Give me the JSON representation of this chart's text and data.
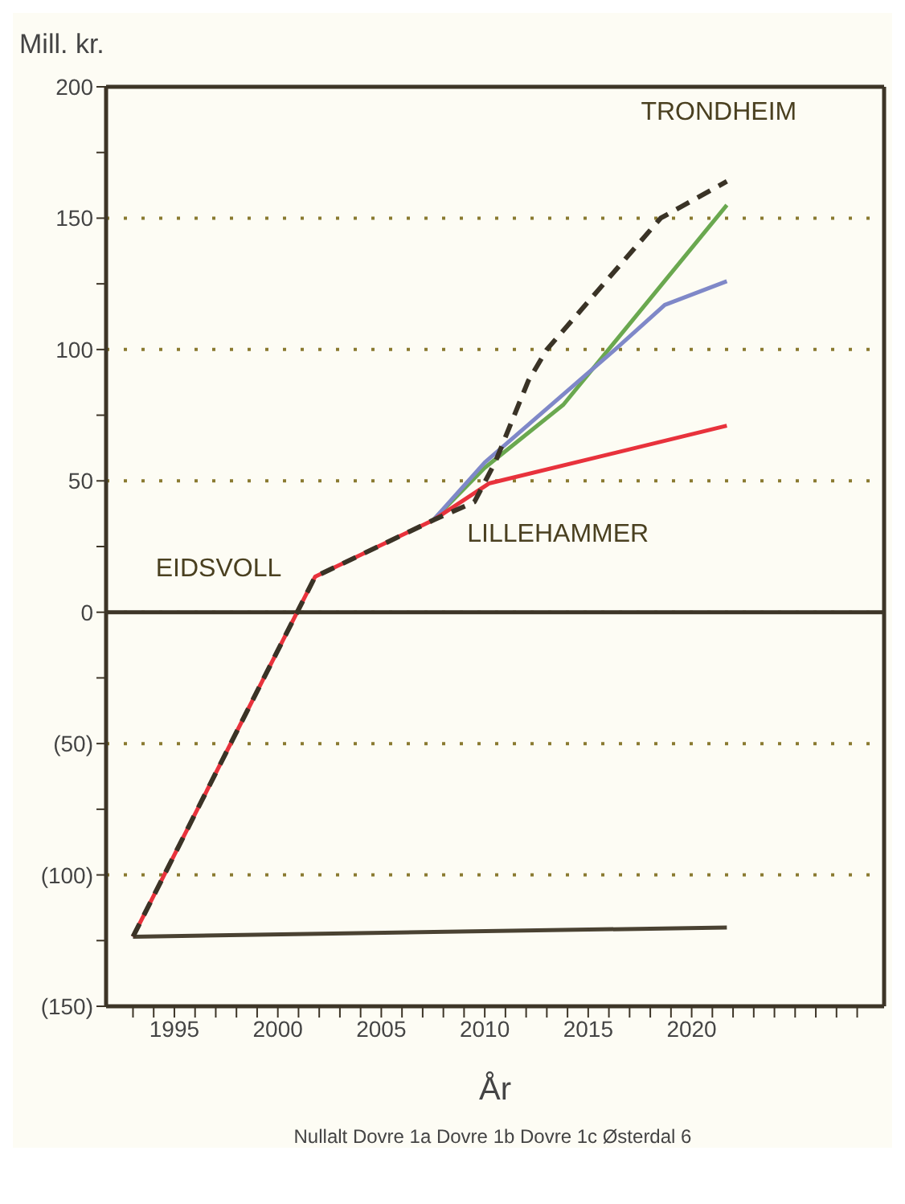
{
  "chart_data": {
    "type": "line",
    "ylabel": "Mill. kr.",
    "xlabel": "År",
    "xlim": [
      1991.7,
      2029.3
    ],
    "xticks": [
      {
        "value": 1993,
        "label": null
      },
      {
        "value": 1994,
        "label": null
      },
      1995,
      {
        "value": 1996,
        "label": null
      },
      {
        "value": 1997,
        "label": null
      },
      {
        "value": 1998,
        "label": null
      },
      {
        "value": 1999,
        "label": null
      },
      2000,
      {
        "value": 2001,
        "label": null
      },
      {
        "value": 2002,
        "label": null
      },
      {
        "value": 2003,
        "label": null
      },
      {
        "value": 2004,
        "label": null
      },
      2005,
      {
        "value": 2006,
        "label": null
      },
      {
        "value": 2007,
        "label": null
      },
      {
        "value": 2008,
        "label": null
      },
      {
        "value": 2009,
        "label": null
      },
      2010,
      {
        "value": 2011,
        "label": null
      },
      {
        "value": 2012,
        "label": null
      },
      {
        "value": 2013,
        "label": null
      },
      {
        "value": 2014,
        "label": null
      },
      2015,
      {
        "value": 2016,
        "label": null
      },
      {
        "value": 2017,
        "label": null
      },
      {
        "value": 2018,
        "label": null
      },
      {
        "value": 2019,
        "label": null
      },
      2020,
      {
        "value": 2021,
        "label": null
      },
      {
        "value": 2022,
        "label": null
      },
      {
        "value": 2023,
        "label": null
      },
      {
        "value": 2024,
        "label": null
      },
      {
        "value": 2025,
        "label": null
      },
      {
        "value": 2026,
        "label": null
      },
      {
        "value": 2027,
        "label": null
      },
      {
        "value": 2028,
        "label": null
      }
    ],
    "ylim": [
      -150,
      200
    ],
    "yticks": [
      200,
      {
        "value": 175,
        "label": null
      },
      150,
      {
        "value": 125,
        "label": null
      },
      100,
      {
        "value": 75,
        "label": null
      },
      50,
      {
        "value": 25,
        "label": null
      },
      0,
      {
        "value": -25,
        "label": null
      },
      {
        "value": -50,
        "label": "(50)"
      },
      {
        "value": -75,
        "label": null
      },
      {
        "value": -100,
        "label": "(100)"
      },
      {
        "value": -125,
        "label": null
      },
      {
        "value": -150,
        "label": "(150)"
      }
    ],
    "grid": "y",
    "ref_lines": [
      {
        "axis": "y",
        "value": 0,
        "color": "#3d3527",
        "line_style": "solid"
      }
    ],
    "series": [
      {
        "color": "#4a4232",
        "x": [
          1993,
          2021.7
        ],
        "values": [
          -123.5,
          -120
        ]
      },
      {
        "color": "#6aa84f",
        "x": [
          2007.5,
          2010,
          2013.8,
          2021.7
        ],
        "values": [
          35,
          55,
          79,
          155
        ]
      },
      {
        "color": "#7f88c8",
        "x": [
          2007.5,
          2010,
          2016.3,
          2018.7,
          2021.7
        ],
        "values": [
          35,
          57,
          100,
          117,
          126
        ]
      },
      {
        "color": "#e8323c",
        "x": [
          1993,
          2001.8,
          2007.5,
          2010.2,
          2021.7
        ],
        "values": [
          -123.5,
          13.5,
          35,
          49,
          71
        ]
      },
      {
        "color": "#3a3326",
        "line_style": "dashed",
        "x": [
          1993,
          2001.8,
          2007.5,
          2009.5,
          2010.5,
          2012.1,
          2013,
          2018.5,
          2021.7
        ],
        "values": [
          -123.5,
          13.5,
          35,
          42,
          57,
          88,
          100,
          150,
          164
        ]
      }
    ],
    "annotations": [
      {
        "text": "EIDSVOLL",
        "x": 2001.8,
        "y": 13.5
      },
      {
        "text": "LILLEHAMMER",
        "x": 2009.5,
        "y": 42
      },
      {
        "text": "TRONDHEIM",
        "x": 2021.7,
        "y": 164
      },
      "Nullalt Dovre 1a Dovre 1b Dovre 1c Østerdal 6"
    ]
  }
}
